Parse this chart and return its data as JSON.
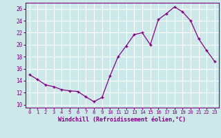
{
  "x": [
    0,
    1,
    2,
    3,
    4,
    5,
    6,
    7,
    8,
    9,
    10,
    11,
    12,
    13,
    14,
    15,
    16,
    17,
    18,
    19,
    20,
    21,
    22,
    23
  ],
  "y": [
    15.0,
    14.2,
    13.3,
    13.0,
    12.5,
    12.3,
    12.2,
    11.3,
    10.5,
    11.2,
    14.8,
    18.0,
    19.8,
    21.7,
    22.0,
    20.0,
    24.2,
    25.2,
    26.3,
    25.5,
    24.0,
    21.0,
    19.0,
    17.2
  ],
  "xlabel": "Windchill (Refroidissement éolien,°C)",
  "xlim": [
    -0.5,
    23.5
  ],
  "ylim": [
    9.5,
    27.0
  ],
  "yticks": [
    10,
    12,
    14,
    16,
    18,
    20,
    22,
    24,
    26
  ],
  "xticks": [
    0,
    1,
    2,
    3,
    4,
    5,
    6,
    7,
    8,
    9,
    10,
    11,
    12,
    13,
    14,
    15,
    16,
    17,
    18,
    19,
    20,
    21,
    22,
    23
  ],
  "line_color": "#800080",
  "marker": "+",
  "bg_color": "#cce8e8",
  "grid_color": "#ffffff"
}
